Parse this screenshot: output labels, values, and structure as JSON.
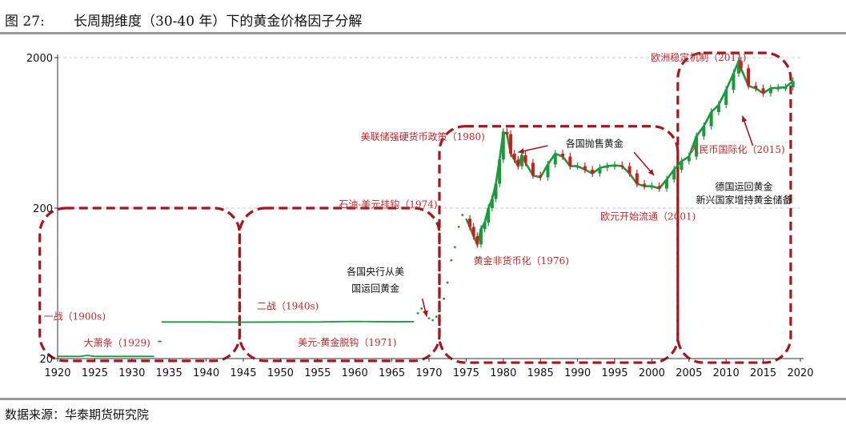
{
  "figure": {
    "label": "图 27:",
    "title": "长周期维度（30-40 年）下的黄金价格因子分解",
    "source": "数据来源：华泰期货研究院"
  },
  "colors": {
    "price_line": "#1a9a3a",
    "candle_down": "#d01c1c",
    "box_border": "#a8151b",
    "annotation_red": "#c0282c"
  },
  "chart_data": {
    "type": "line",
    "title": "",
    "xlabel": "",
    "ylabel": "",
    "x_scale": "linear",
    "y_scale": "log",
    "xlim": [
      1920,
      2020
    ],
    "ylim": [
      20,
      2000
    ],
    "x_ticks": [
      1920,
      1925,
      1930,
      1935,
      1940,
      1945,
      1950,
      1955,
      1960,
      1965,
      1970,
      1975,
      1980,
      1985,
      1990,
      1995,
      2000,
      2005,
      2010,
      2015,
      2020
    ],
    "y_ticks": [
      20,
      200,
      2000
    ],
    "grid": "horizontal dashed at 200 and 2000",
    "series": [
      {
        "style": "line",
        "x": [
          1920,
          1923,
          1924,
          1925,
          1929,
          1933
        ],
        "y": [
          20.67,
          20.67,
          21.0,
          20.67,
          20.67,
          20.67
        ]
      },
      {
        "style": "line",
        "x": [
          1933.5,
          1934
        ],
        "y": [
          26,
          26
        ]
      },
      {
        "style": "line",
        "x": [
          1934,
          1940,
          1945,
          1950,
          1955,
          1960,
          1965,
          1968
        ],
        "y": [
          35,
          35,
          34.9,
          35,
          35,
          35.3,
          35.1,
          35.2
        ]
      },
      {
        "style": "scatter",
        "x": [
          1968.5,
          1969,
          1969.5,
          1970,
          1970.5,
          1971,
          1971.5,
          1972,
          1972.5,
          1973,
          1973.5,
          1974,
          1974.5
        ],
        "y": [
          40,
          43,
          41,
          37,
          36,
          38,
          42,
          50,
          64,
          90,
          110,
          150,
          180
        ]
      },
      {
        "style": "candlestick",
        "x": [
          1975,
          1975.5,
          1976,
          1976.5,
          1977,
          1977.5,
          1978,
          1978.5,
          1979,
          1979.5,
          1980,
          1980.5,
          1981,
          1981.5,
          1982,
          1982.5,
          1983,
          1984,
          1985,
          1986,
          1987,
          1988,
          1989,
          1990,
          1991,
          1992,
          1993,
          1994,
          1995,
          1996,
          1997,
          1998,
          1999,
          2000,
          2001,
          2002,
          2003,
          2004,
          2005,
          2006,
          2007,
          2008,
          2009,
          2010,
          2011,
          2011.7,
          2012,
          2013,
          2014,
          2015,
          2016,
          2017,
          2018,
          2019
        ],
        "y": [
          170,
          150,
          130,
          115,
          145,
          160,
          200,
          230,
          290,
          420,
          640,
          620,
          460,
          420,
          380,
          450,
          400,
          330,
          320,
          390,
          460,
          440,
          380,
          380,
          360,
          340,
          370,
          380,
          385,
          380,
          340,
          290,
          280,
          280,
          270,
          310,
          360,
          410,
          440,
          600,
          700,
          870,
          970,
          1220,
          1570,
          1900,
          1700,
          1300,
          1250,
          1160,
          1250,
          1260,
          1270,
          1400
        ]
      }
    ],
    "annotations": [
      {
        "text": "一战（1900s)",
        "color": "red"
      },
      {
        "text": "大萧条（1929)",
        "color": "red"
      },
      {
        "text": "二战（1940s)",
        "color": "red"
      },
      {
        "text": "美元-黄金脱钩（1971)",
        "color": "red"
      },
      {
        "text": "各国央行从美",
        "color": "dark"
      },
      {
        "text": "国运回黄金",
        "color": "dark"
      },
      {
        "text": "石油-美元挂钩（1974)",
        "color": "red"
      },
      {
        "text": "黄金非货币化（1976)",
        "color": "red"
      },
      {
        "text": "美联储强硬货币政策（1980)",
        "color": "red"
      },
      {
        "text": "各国抛售黄金",
        "color": "dark"
      },
      {
        "text": "欧元开始流通（2001)",
        "color": "red"
      },
      {
        "text": "欧洲稳定机制（2011)",
        "color": "red"
      },
      {
        "text": "人民币国际化（2015)",
        "color": "red"
      },
      {
        "text": "德国运回黄金",
        "color": "dark"
      },
      {
        "text": "新兴国家增持黄金储备",
        "color": "dark"
      }
    ]
  }
}
